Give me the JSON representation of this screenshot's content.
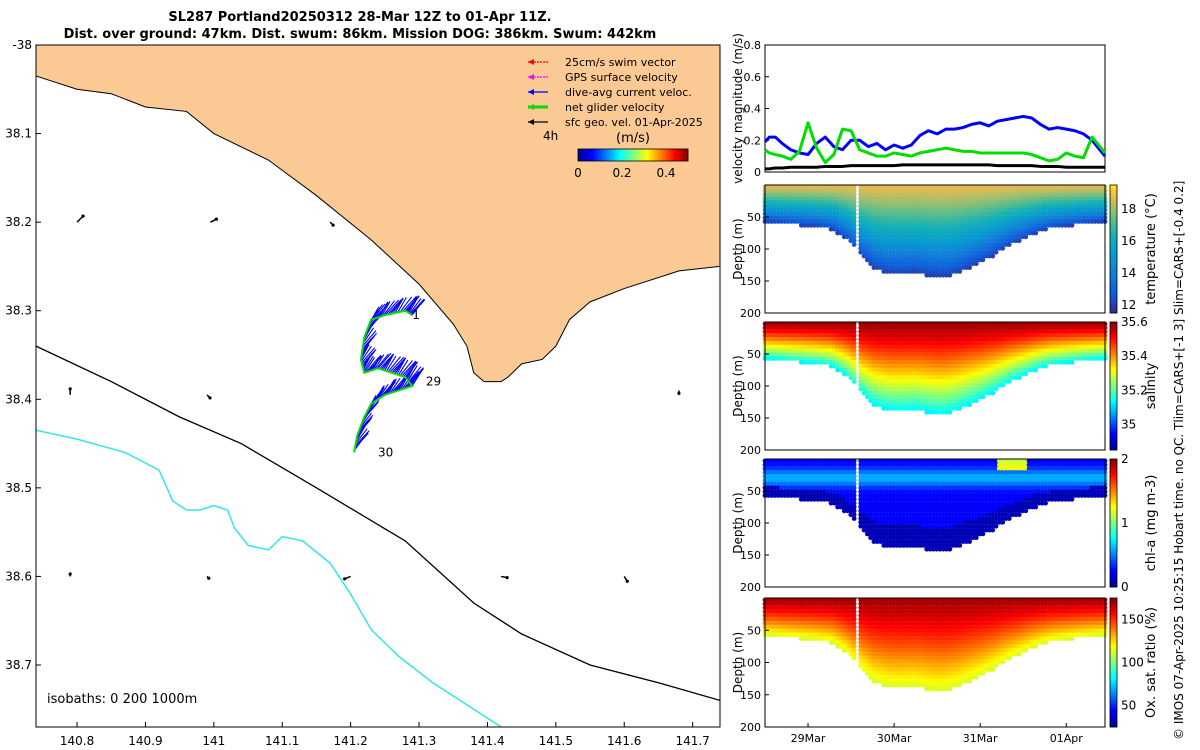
{
  "header": {
    "title_line1": "SL287 Portland20250312 28-Mar 12Z to 01-Apr 11Z.",
    "title_line2": "Dist. over ground: 47km. Dist. swum: 86km. Mission DOG: 386km. Swum: 442km"
  },
  "credit": "© IMOS 07-Apr-2025 10:25:15 Hobart time. no QC. Tlim=CARS+[-1 3] Slim=CARS+[-0.4 0.2]",
  "colors": {
    "land": "#fac994",
    "swim_vector": "#ff0000",
    "gps_velocity": "#ff00ff",
    "dive_avg": "#0000ff",
    "net_glider": "#00dd00",
    "geo_vel": "#000000",
    "isobath_200": "#000000",
    "isobath_1000": "#33e6e6"
  },
  "chart_data": [
    {
      "type": "map",
      "name": "track-map",
      "xlim": [
        140.74,
        141.74
      ],
      "ylim": [
        -38.77,
        -38.0
      ],
      "x_ticks": [
        140.8,
        140.9,
        141.0,
        141.1,
        141.2,
        141.3,
        141.4,
        141.5,
        141.6,
        141.7
      ],
      "x_tick_labels": [
        "140.8",
        "140.9",
        "141",
        "141.1",
        "141.2",
        "141.3",
        "141.4",
        "141.5",
        "141.6",
        "141.7"
      ],
      "y_ticks": [
        -38.0,
        -38.1,
        -38.2,
        -38.3,
        -38.4,
        -38.5,
        -38.6,
        -38.7
      ],
      "y_tick_labels": [
        "-38",
        "38.1",
        "38.2",
        "38.3",
        "38.4",
        "38.5",
        "38.6",
        "38.7"
      ],
      "legend": [
        {
          "label": "25cm/s swim vector",
          "color": "#ff0000",
          "style": "dotted"
        },
        {
          "label": "GPS surface velocity",
          "color": "#ff00ff",
          "style": "dotted"
        },
        {
          "label": "dive-avg current veloc.",
          "color": "#0000ff",
          "style": "solid"
        },
        {
          "label": "net glider velocity",
          "color": "#00dd00",
          "style": "thick"
        },
        {
          "label": "sfc geo. vel. 01-Apr-2025",
          "color": "#000000",
          "style": "solid"
        }
      ],
      "legend_placement": "top-right",
      "colorbar": {
        "prefix": "4h",
        "unit": "(m/s)",
        "ticks": [
          0,
          0.2,
          0.4
        ],
        "tick_labels": [
          "0",
          "0.2",
          "0.4"
        ],
        "range": [
          0,
          0.5
        ]
      },
      "isobath_note": "isobaths: 0   200  1000m",
      "day_labels": [
        {
          "label": "1",
          "lon": 141.29,
          "lat": -38.305
        },
        {
          "label": "29",
          "lon": 141.31,
          "lat": -38.38
        },
        {
          "label": "30",
          "lon": 141.24,
          "lat": -38.46
        }
      ],
      "coastline": [
        [
          140.74,
          -38.0
        ],
        [
          141.74,
          -38.0
        ],
        [
          141.74,
          -38.25
        ],
        [
          141.68,
          -38.255
        ],
        [
          141.6,
          -38.275
        ],
        [
          141.55,
          -38.29
        ],
        [
          141.52,
          -38.31
        ],
        [
          141.5,
          -38.34
        ],
        [
          141.48,
          -38.355
        ],
        [
          141.45,
          -38.36
        ],
        [
          141.43,
          -38.375
        ],
        [
          141.42,
          -38.38
        ],
        [
          141.395,
          -38.38
        ],
        [
          141.38,
          -38.37
        ],
        [
          141.37,
          -38.34
        ],
        [
          141.35,
          -38.315
        ],
        [
          141.3,
          -38.27
        ],
        [
          141.23,
          -38.22
        ],
        [
          141.15,
          -38.17
        ],
        [
          141.08,
          -38.13
        ],
        [
          141.0,
          -38.1
        ],
        [
          140.96,
          -38.075
        ],
        [
          140.9,
          -38.07
        ],
        [
          140.85,
          -38.055
        ],
        [
          140.8,
          -38.05
        ],
        [
          140.76,
          -38.04
        ],
        [
          140.74,
          -38.035
        ]
      ],
      "isobath_200": [
        [
          140.74,
          -38.34
        ],
        [
          140.85,
          -38.38
        ],
        [
          140.95,
          -38.42
        ],
        [
          141.04,
          -38.45
        ],
        [
          141.15,
          -38.5
        ],
        [
          141.28,
          -38.56
        ],
        [
          141.38,
          -38.63
        ],
        [
          141.45,
          -38.665
        ],
        [
          141.55,
          -38.7
        ],
        [
          141.65,
          -38.72
        ],
        [
          141.74,
          -38.74
        ]
      ],
      "isobath_1000": [
        [
          140.74,
          -38.435
        ],
        [
          140.8,
          -38.445
        ],
        [
          140.87,
          -38.46
        ],
        [
          140.92,
          -38.48
        ],
        [
          140.94,
          -38.515
        ],
        [
          140.96,
          -38.525
        ],
        [
          140.98,
          -38.525
        ],
        [
          141.0,
          -38.52
        ],
        [
          141.02,
          -38.525
        ],
        [
          141.03,
          -38.545
        ],
        [
          141.05,
          -38.565
        ],
        [
          141.08,
          -38.57
        ],
        [
          141.1,
          -38.555
        ],
        [
          141.13,
          -38.56
        ],
        [
          141.17,
          -38.585
        ],
        [
          141.2,
          -38.62
        ],
        [
          141.23,
          -38.66
        ],
        [
          141.27,
          -38.69
        ],
        [
          141.32,
          -38.72
        ],
        [
          141.38,
          -38.75
        ],
        [
          141.42,
          -38.77
        ]
      ],
      "glider_track": [
        [
          141.29,
          -38.305
        ],
        [
          141.28,
          -38.3
        ],
        [
          141.25,
          -38.305
        ],
        [
          141.23,
          -38.31
        ],
        [
          141.22,
          -38.33
        ],
        [
          141.215,
          -38.355
        ],
        [
          141.22,
          -38.37
        ],
        [
          141.24,
          -38.365
        ],
        [
          141.26,
          -38.37
        ],
        [
          141.28,
          -38.375
        ],
        [
          141.29,
          -38.385
        ],
        [
          141.27,
          -38.39
        ],
        [
          141.25,
          -38.395
        ],
        [
          141.23,
          -38.405
        ],
        [
          141.22,
          -38.42
        ],
        [
          141.21,
          -38.44
        ],
        [
          141.205,
          -38.46
        ]
      ],
      "geo_vectors": [
        [
          140.8,
          -38.2,
          0.01,
          0.01
        ],
        [
          140.995,
          -38.2,
          0.01,
          0.005
        ],
        [
          141.17,
          -38.2,
          0.005,
          -0.005
        ],
        [
          140.79,
          -38.395,
          0.0,
          0.01
        ],
        [
          140.99,
          -38.395,
          0.005,
          -0.005
        ],
        [
          140.79,
          -38.6,
          0.0,
          0.004
        ],
        [
          140.99,
          -38.6,
          0.003,
          -0.003
        ],
        [
          141.2,
          -38.6,
          -0.01,
          -0.004
        ],
        [
          141.42,
          -38.6,
          0.01,
          -0.002
        ],
        [
          141.6,
          -38.6,
          0.005,
          -0.008
        ],
        [
          141.68,
          -38.39,
          0.0,
          -0.005
        ]
      ]
    },
    {
      "type": "line",
      "name": "velocity-magnitude",
      "ylabel": "velocity magnitude (m/s)",
      "ylim": [
        0,
        0.8
      ],
      "y_ticks": [
        0,
        0.2,
        0.4,
        0.6,
        0.8
      ],
      "y_tick_labels": [
        "0",
        "0.2",
        "0.4",
        "0.6",
        "0.8"
      ],
      "x": [
        0,
        0.05,
        0.12,
        0.2,
        0.3,
        0.4,
        0.5,
        0.6,
        0.7,
        0.8,
        0.9,
        1.0,
        1.1,
        1.2,
        1.3,
        1.4,
        1.5,
        1.6,
        1.7,
        1.8,
        1.9,
        2.0,
        2.1,
        2.2,
        2.3,
        2.4,
        2.5,
        2.6,
        2.7,
        2.8,
        2.9,
        3.0,
        3.1,
        3.2,
        3.3,
        3.4,
        3.5,
        3.6,
        3.7,
        3.8,
        3.95
      ],
      "series": [
        {
          "name": "dive-avg current",
          "color": "#0000ff",
          "width": 3,
          "values": [
            0.19,
            0.22,
            0.22,
            0.18,
            0.14,
            0.12,
            0.11,
            0.18,
            0.22,
            0.16,
            0.14,
            0.2,
            0.2,
            0.16,
            0.18,
            0.14,
            0.17,
            0.15,
            0.17,
            0.23,
            0.26,
            0.24,
            0.27,
            0.27,
            0.28,
            0.3,
            0.31,
            0.29,
            0.32,
            0.33,
            0.34,
            0.35,
            0.34,
            0.3,
            0.27,
            0.28,
            0.27,
            0.26,
            0.24,
            0.2,
            0.1
          ]
        },
        {
          "name": "net glider",
          "color": "#00dd00",
          "width": 3,
          "values": [
            0.14,
            0.12,
            0.11,
            0.1,
            0.08,
            0.13,
            0.31,
            0.15,
            0.06,
            0.11,
            0.27,
            0.26,
            0.14,
            0.12,
            0.1,
            0.1,
            0.12,
            0.11,
            0.1,
            0.12,
            0.13,
            0.14,
            0.15,
            0.14,
            0.13,
            0.13,
            0.12,
            0.12,
            0.12,
            0.12,
            0.12,
            0.12,
            0.11,
            0.09,
            0.07,
            0.08,
            0.12,
            0.1,
            0.09,
            0.22,
            0.12
          ]
        },
        {
          "name": "surface geostrophic",
          "color": "#000000",
          "width": 3,
          "values": [
            0.02,
            0.02,
            0.025,
            0.025,
            0.03,
            0.03,
            0.03,
            0.03,
            0.035,
            0.035,
            0.035,
            0.04,
            0.04,
            0.04,
            0.04,
            0.04,
            0.04,
            0.045,
            0.045,
            0.045,
            0.045,
            0.045,
            0.045,
            0.045,
            0.045,
            0.045,
            0.045,
            0.045,
            0.04,
            0.04,
            0.04,
            0.04,
            0.04,
            0.035,
            0.035,
            0.035,
            0.03,
            0.03,
            0.03,
            0.03,
            0.03
          ]
        }
      ]
    },
    {
      "type": "heatmap",
      "name": "temperature-section",
      "ylabel": "Depth (m)",
      "clabel": "temperature (°C)",
      "ylim": [
        0,
        200
      ],
      "y_ticks": [
        50,
        100,
        150,
        200
      ],
      "y_tick_labels": [
        "50",
        "100",
        "150",
        "200"
      ],
      "crange": [
        11.5,
        19.5
      ],
      "cticks": [
        12,
        14,
        16,
        18
      ],
      "ctick_labels": [
        "12",
        "14",
        "16",
        "18"
      ],
      "colormap": "parula",
      "surface_value": 18.8,
      "deep_value": 12.0,
      "profile_depth_m": [
        58,
        60,
        62,
        64,
        66,
        70,
        85,
        110,
        130,
        138,
        140,
        138,
        142,
        145,
        140,
        130,
        120,
        108,
        95,
        85,
        75,
        68,
        65,
        62,
        60,
        58
      ]
    },
    {
      "type": "heatmap",
      "name": "salinity-section",
      "ylabel": "Depth (m)",
      "clabel": "salinity",
      "ylim": [
        0,
        200
      ],
      "y_ticks": [
        50,
        100,
        150,
        200
      ],
      "y_tick_labels": [
        "50",
        "100",
        "150",
        "200"
      ],
      "crange": [
        34.85,
        35.6
      ],
      "cticks": [
        35,
        35.2,
        35.4,
        35.6
      ],
      "ctick_labels": [
        "35",
        "35.2",
        "35.4",
        "35.6"
      ],
      "colormap": "jet",
      "surface_value": 35.58,
      "deep_value": 35.12,
      "profile_depth_m": [
        58,
        60,
        62,
        64,
        66,
        70,
        85,
        110,
        130,
        138,
        140,
        138,
        142,
        145,
        140,
        130,
        120,
        108,
        95,
        85,
        75,
        68,
        65,
        62,
        60,
        58
      ]
    },
    {
      "type": "heatmap",
      "name": "chla-section",
      "ylabel": "Depth (m)",
      "clabel": "chl-a (mg m-3)",
      "ylim": [
        0,
        200
      ],
      "y_ticks": [
        50,
        100,
        150,
        200
      ],
      "y_tick_labels": [
        "50",
        "100",
        "150",
        "200"
      ],
      "crange": [
        0,
        2
      ],
      "cticks": [
        0,
        1,
        2
      ],
      "ctick_labels": [
        "0",
        "1",
        "2"
      ],
      "colormap": "jet",
      "surface_value": 0.6,
      "deep_value": 0.05,
      "profile_depth_m": [
        58,
        60,
        62,
        64,
        66,
        70,
        85,
        110,
        130,
        138,
        140,
        138,
        142,
        145,
        140,
        130,
        120,
        108,
        95,
        85,
        75,
        68,
        65,
        62,
        60,
        58
      ]
    },
    {
      "type": "heatmap",
      "name": "oxygen-section",
      "ylabel": "Depth (m)",
      "clabel": "Ox. sat. ratio (%)",
      "ylim": [
        0,
        200
      ],
      "y_ticks": [
        50,
        100,
        150,
        200
      ],
      "y_tick_labels": [
        "50",
        "100",
        "150",
        "200"
      ],
      "crange": [
        25,
        175
      ],
      "cticks": [
        50,
        100,
        150
      ],
      "ctick_labels": [
        "50",
        "100",
        "150"
      ],
      "colormap": "jet",
      "surface_value": 170,
      "deep_value": 112,
      "profile_depth_m": [
        58,
        60,
        62,
        64,
        66,
        70,
        85,
        110,
        130,
        138,
        140,
        138,
        142,
        145,
        140,
        130,
        120,
        108,
        95,
        85,
        75,
        68,
        65,
        62,
        60,
        58
      ],
      "x_ticks": [
        0.5,
        1.5,
        2.5,
        3.5
      ],
      "x_tick_labels": [
        "29Mar",
        "30Mar",
        "31Mar",
        "01Apr"
      ]
    }
  ]
}
